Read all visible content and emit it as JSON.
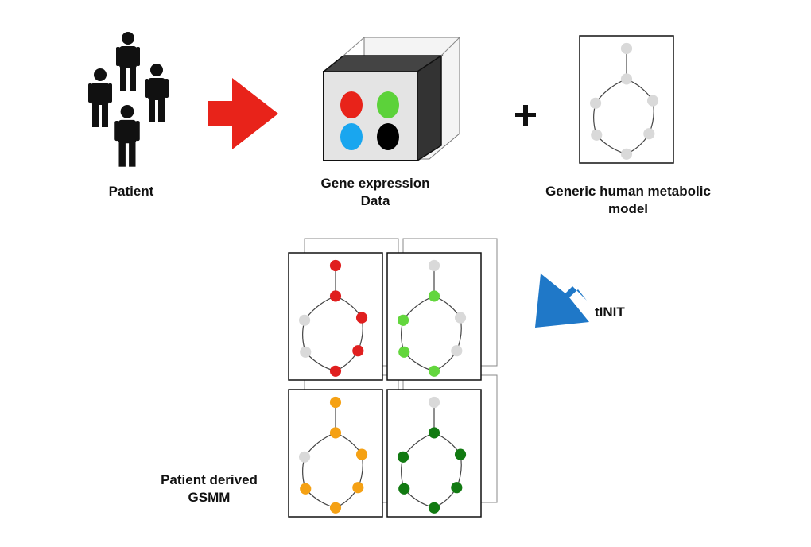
{
  "labels": {
    "patient": "Patient",
    "gene_expression_line1": "Gene expression",
    "gene_expression_line2": "Data",
    "generic_model_line1": "Generic human metabolic",
    "generic_model_line2": "model",
    "plus": "+",
    "tinit": "tINIT",
    "patient_derived_line1": "Patient derived",
    "patient_derived_line2": "GSMM"
  },
  "colors": {
    "red_arrow": "#e8231a",
    "blue_arrow": "#1f78c8",
    "figure": "#111111",
    "inactive_node": "#d9d9d9",
    "dot_red": "#e8231a",
    "dot_green": "#5cd23a",
    "dot_blue": "#19a6ef",
    "dot_black": "#000000",
    "model_red": "#e01f1f",
    "model_green": "#63d63d",
    "model_orange": "#f5a114",
    "model_darkgreen": "#127a12"
  },
  "models": [
    {
      "name": "red-model",
      "color": "model_red",
      "active": [
        true,
        true,
        false,
        true,
        false,
        true,
        true
      ]
    },
    {
      "name": "green-model",
      "color": "model_green",
      "active": [
        false,
        true,
        true,
        false,
        true,
        false,
        true
      ]
    },
    {
      "name": "orange-model",
      "color": "model_orange",
      "active": [
        true,
        true,
        false,
        true,
        true,
        true,
        true
      ]
    },
    {
      "name": "darkgreen-model",
      "color": "model_darkgreen",
      "active": [
        false,
        true,
        true,
        true,
        true,
        true,
        true
      ]
    }
  ]
}
